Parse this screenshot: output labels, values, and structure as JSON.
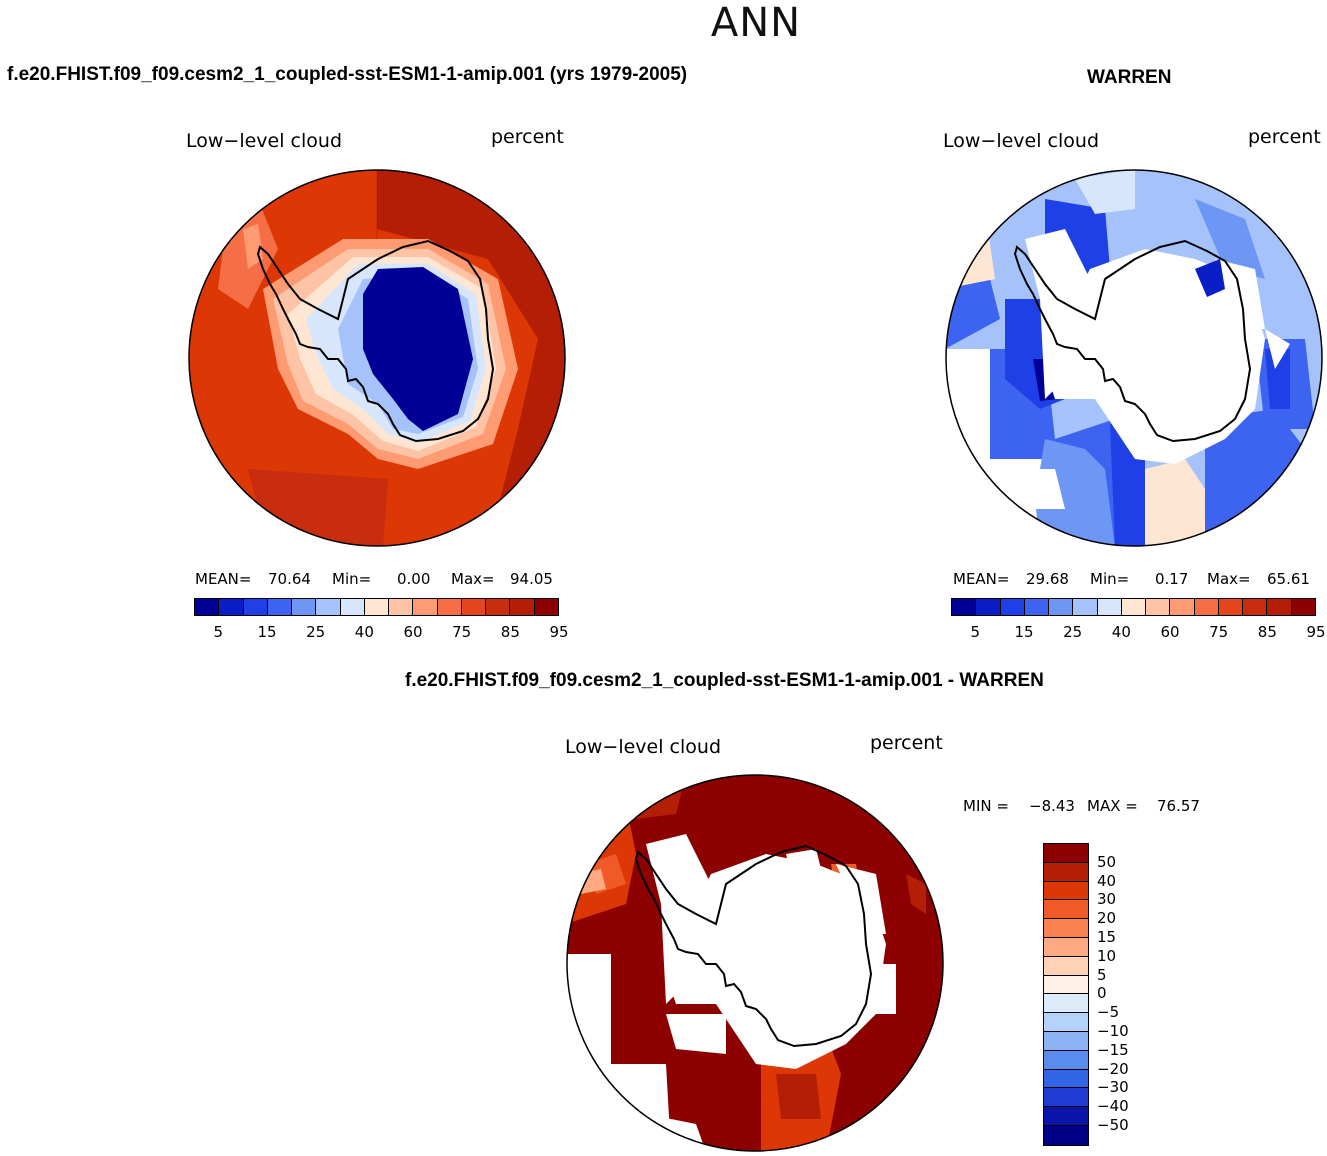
{
  "page": {
    "title": "ANN"
  },
  "panels": {
    "model": {
      "case_title": "f.e20.FHIST.f09_f09.cesm2_1_coupled-sst-ESM1-1-amip.001 (yrs 1979-2005)",
      "variable": "Low−level cloud",
      "units": "percent",
      "stats": {
        "mean_label": "MEAN=",
        "mean": "70.64",
        "min_label": "Min=",
        "min": "0.00",
        "max_label": "Max=",
        "max": "94.05"
      }
    },
    "obs": {
      "case_title": "WARREN",
      "variable": "Low−level cloud",
      "units": "percent",
      "stats": {
        "mean_label": "MEAN=",
        "mean": "29.68",
        "min_label": "Min=",
        "min": "0.17",
        "max_label": "Max=",
        "max": "65.61"
      }
    },
    "diff": {
      "case_title": "f.e20.FHIST.f09_f09.cesm2_1_coupled-sst-ESM1-1-amip.001 - WARREN",
      "variable": "Low−level cloud",
      "units": "percent",
      "stats": {
        "min_label": "MIN =",
        "min": "−8.43",
        "max_label": "MAX =",
        "max": "76.57"
      }
    }
  },
  "colorbar_main": {
    "tick_labels": [
      "5",
      "15",
      "25",
      "40",
      "60",
      "75",
      "85",
      "95"
    ],
    "colors": [
      "#000096",
      "#0A1EC8",
      "#1E40E6",
      "#3C64F0",
      "#6E96F5",
      "#A5C3FA",
      "#D7E6FA",
      "#FFE6D2",
      "#FFC3A5",
      "#FF9B73",
      "#F56E46",
      "#E6461E",
      "#C82D0F",
      "#B41E05",
      "#8C0000"
    ]
  },
  "colorbar_diff": {
    "tick_labels": [
      "50",
      "40",
      "30",
      "20",
      "15",
      "10",
      "5",
      "0",
      "−5",
      "−10",
      "−15",
      "−20",
      "−30",
      "−40",
      "−50"
    ],
    "colors": [
      "#8C0000",
      "#B41E05",
      "#DC3705",
      "#F05A28",
      "#FA8250",
      "#FFAA82",
      "#FFD2B4",
      "#FFF0E6",
      "#DCEBFA",
      "#B4D2FA",
      "#8CB4F5",
      "#5A8CF0",
      "#3264E6",
      "#1E3CD2",
      "#0A14AA",
      "#000087"
    ]
  },
  "icons": {
    "coastline": "antarctica-coastline-icon"
  }
}
